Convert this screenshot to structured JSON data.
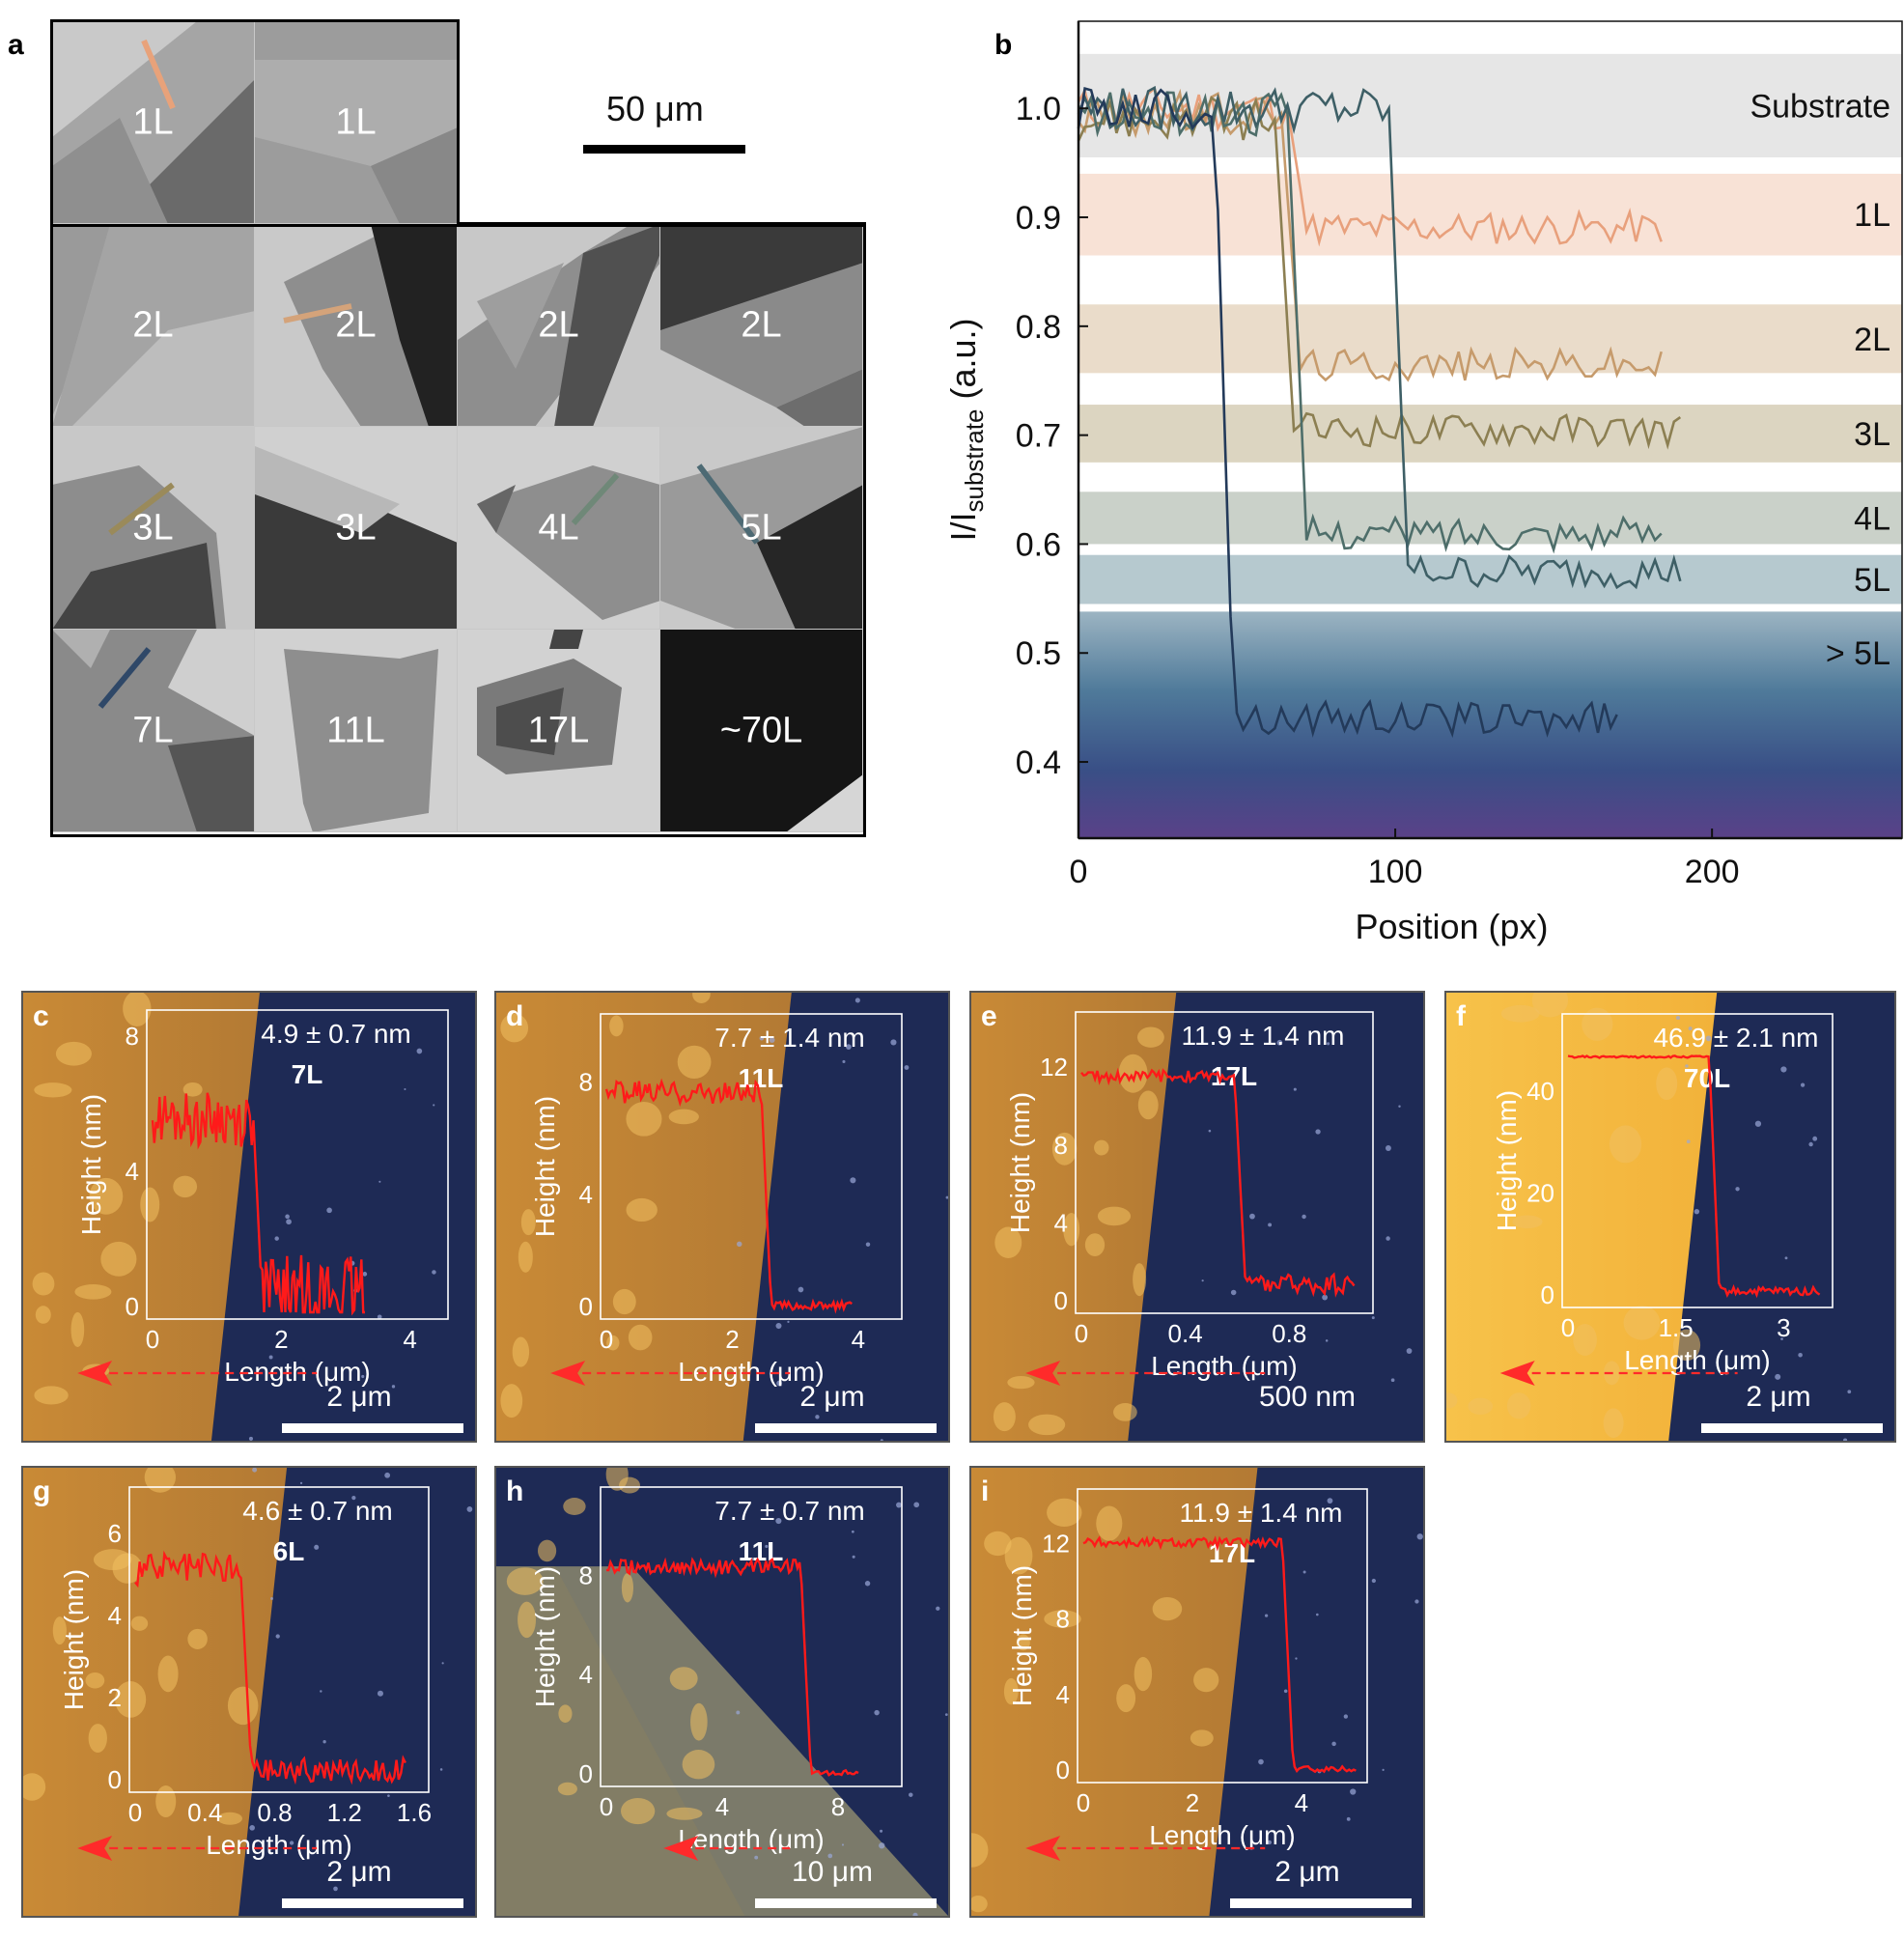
{
  "panel_a": {
    "letter": "a",
    "scale_bar_label": "50 μm",
    "tiles": [
      {
        "label": "1L",
        "style": "1L-a",
        "line_color": "#e8a27a"
      },
      {
        "label": "1L",
        "style": "1L-b",
        "line_color": ""
      },
      {
        "label": "2L",
        "style": "2L-a",
        "line_color": ""
      },
      {
        "label": "2L",
        "style": "2L-b",
        "line_color": "#d4a37a"
      },
      {
        "label": "2L",
        "style": "2L-c",
        "line_color": ""
      },
      {
        "label": "2L",
        "style": "2L-d",
        "line_color": ""
      },
      {
        "label": "3L",
        "style": "3L-a",
        "line_color": "#9a8a5a"
      },
      {
        "label": "3L",
        "style": "3L-b",
        "line_color": ""
      },
      {
        "label": "4L",
        "style": "4L",
        "line_color": "#6f8878"
      },
      {
        "label": "5L",
        "style": "5L",
        "line_color": "#4d6a74"
      },
      {
        "label": "7L",
        "style": "7L",
        "line_color": "#2f4868"
      },
      {
        "label": "11L",
        "style": "11L",
        "line_color": ""
      },
      {
        "label": "17L",
        "style": "17L",
        "line_color": ""
      },
      {
        "label": "~70L",
        "style": "70L",
        "line_color": ""
      }
    ]
  },
  "panel_b": {
    "letter": "b",
    "chart_data": {
      "type": "line",
      "xlabel": "Position (px)",
      "ylabel": "I/I",
      "ylabel_sub": "substrate",
      "ylabel_unit": " (a.u.)",
      "xlim": [
        0,
        260
      ],
      "ylim": [
        0.33,
        1.08
      ],
      "xticks": [
        0,
        100,
        200
      ],
      "yticks": [
        0.4,
        0.5,
        0.6,
        0.7,
        0.8,
        0.9,
        1.0
      ],
      "ytick_labels": [
        "0.4",
        "0.5",
        "0.6",
        "0.7",
        "0.8",
        "0.9",
        "1.0"
      ],
      "bands": [
        {
          "label": "Substrate",
          "y0": 0.955,
          "y1": 1.05,
          "color": "#e6e6e6"
        },
        {
          "label": "1L",
          "y0": 0.865,
          "y1": 0.94,
          "color": "#f8e2d6"
        },
        {
          "label": "2L",
          "y0": 0.757,
          "y1": 0.82,
          "color": "#eadcca"
        },
        {
          "label": "3L",
          "y0": 0.675,
          "y1": 0.728,
          "color": "#dcd5c1"
        },
        {
          "label": "4L",
          "y0": 0.6,
          "y1": 0.648,
          "color": "#cad1c9"
        },
        {
          "label": "5L",
          "y0": 0.545,
          "y1": 0.59,
          "color": "#b6c9cf"
        },
        {
          "label": "> 5L",
          "y0": 0.33,
          "y1": 0.538,
          "color": "gradient"
        }
      ],
      "series": [
        {
          "color": "#e8a07c",
          "level": 1.0,
          "step_x": 68,
          "end_level": 0.89,
          "end_x": 185
        },
        {
          "color": "#c69b6c",
          "level": 0.995,
          "step_x": 66,
          "end_level": 0.765,
          "end_x": 185
        },
        {
          "color": "#8c7f52",
          "level": 0.99,
          "step_x": 64,
          "end_level": 0.705,
          "end_x": 190
        },
        {
          "color": "#4e6e6a",
          "level": 0.995,
          "step_x": 68,
          "end_level": 0.61,
          "end_x": 185
        },
        {
          "color": "#3e5f66",
          "level": 1.0,
          "step_x": 100,
          "end_level": 0.575,
          "end_x": 191
        },
        {
          "color": "#233a5a",
          "level": 1.0,
          "step_x": 45,
          "end_level": 0.44,
          "end_x": 170
        }
      ]
    }
  },
  "afm_panels": [
    {
      "letter": "c",
      "value": "4.9 ± 0.7 nm",
      "layers": "7L",
      "scale": "2 μm",
      "yticks": [
        "0",
        "4",
        "8"
      ],
      "xticks": [
        "0",
        "2",
        "4"
      ],
      "ylabel": "Height (nm)",
      "xlabel": "Length (μm)",
      "ymax": 8,
      "xmax": 4.5,
      "profile": {
        "x_step": 1.6,
        "high": 5.5,
        "low": 0.3,
        "noise_high": 0.8,
        "noise_low": 1.2,
        "x_end": 3.3
      }
    },
    {
      "letter": "d",
      "value": "7.7 ± 1.4 nm",
      "layers": "11L",
      "scale": "2 μm",
      "yticks": [
        "0",
        "4",
        "8"
      ],
      "xticks": [
        "0",
        "2",
        "4"
      ],
      "ylabel": "Height (nm)",
      "xlabel": "Length (μm)",
      "ymax": 9.5,
      "xmax": 4.6,
      "profile": {
        "x_step": 2.5,
        "high": 7.6,
        "low": 0.0,
        "noise_high": 0.4,
        "noise_low": 0.15,
        "x_end": 3.9
      }
    },
    {
      "letter": "e",
      "value": "11.9 ± 1.4 nm",
      "layers": "17L",
      "scale": "500 nm",
      "yticks": [
        "0",
        "4",
        "8",
        "12"
      ],
      "xticks": [
        "0",
        "0.4",
        "0.8"
      ],
      "ylabel": "Height (nm)",
      "xlabel": "Length (μm)",
      "ymax": 13.5,
      "xmax": 1.1,
      "profile": {
        "x_step": 0.6,
        "high": 11.5,
        "low": 0.8,
        "noise_high": 0.3,
        "noise_low": 0.5,
        "x_end": 1.05
      }
    },
    {
      "letter": "f",
      "value": "46.9 ± 2.1 nm",
      "layers": "70L",
      "scale": "2 μm",
      "yticks": [
        "0",
        "20",
        "40"
      ],
      "xticks": [
        "0",
        "1.5",
        "3"
      ],
      "ylabel": "Height (nm)",
      "xlabel": "Length (μm)",
      "ymax": 50,
      "xmax": 3.6,
      "profile": {
        "x_step": 2.0,
        "high": 46.5,
        "low": 0.5,
        "noise_high": 0.2,
        "noise_low": 0.8,
        "x_end": 3.5
      }
    },
    {
      "letter": "g",
      "value": "4.6 ± 0.7 nm",
      "layers": "6L",
      "scale": "2 μm",
      "yticks": [
        "0",
        "2",
        "4",
        "6"
      ],
      "xticks": [
        "0",
        "0.4",
        "0.8",
        "1.2",
        "1.6"
      ],
      "ylabel": "Height (nm)",
      "xlabel": "Length (μm)",
      "ymax": 6.5,
      "xmax": 1.65,
      "profile": {
        "x_step": 0.62,
        "high": 5.1,
        "low": 0.2,
        "noise_high": 0.4,
        "noise_low": 0.3,
        "x_end": 1.55
      }
    },
    {
      "letter": "h",
      "value": "7.7 ± 0.7 nm",
      "layers": "11L",
      "scale": "10 μm",
      "yticks": [
        "0",
        "4",
        "8"
      ],
      "xticks": [
        "0",
        "4",
        "8"
      ],
      "ylabel": "Height (nm)",
      "xlabel": "Length (μm)",
      "ymax": 10.5,
      "xmax": 10,
      "profile": {
        "x_step": 6.8,
        "high": 8.3,
        "low": 0.0,
        "noise_high": 0.3,
        "noise_low": 0.1,
        "x_end": 8.7
      }
    },
    {
      "letter": "i",
      "value": "11.9 ± 1.4 nm",
      "layers": "17L",
      "scale": "2 μm",
      "yticks": [
        "0",
        "4",
        "8",
        "12"
      ],
      "xticks": [
        "0",
        "2",
        "4"
      ],
      "ylabel": "Height (nm)",
      "xlabel": "Length (μm)",
      "ymax": 13.5,
      "xmax": 5.1,
      "profile": {
        "x_step": 3.7,
        "high": 12.0,
        "low": 0.0,
        "noise_high": 0.25,
        "noise_low": 0.15,
        "x_end": 5.0
      }
    }
  ]
}
